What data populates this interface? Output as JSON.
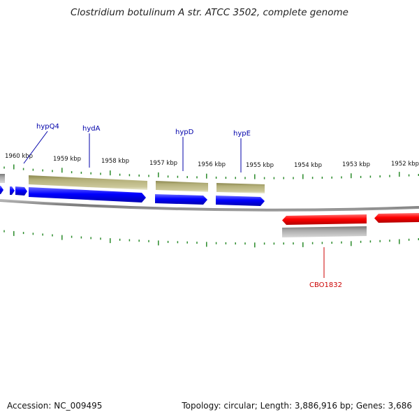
{
  "title": "Clostridium botulinum A str. ATCC 3502, complete genome",
  "footer": {
    "accession": "Accession: NC_009495",
    "summary": "Topology: circular; Length: 3,886,916 bp; Genes: 3,686"
  },
  "colors": {
    "backbone": "#8a8a8a",
    "tick": "#2a8a2a",
    "gene_forward": "#0000ff",
    "gene_reverse": "#ff0000",
    "cds_feature": "#b4b07a",
    "gray_feature": "#a8a8a8",
    "label_forward": "#0000aa",
    "label_reverse": "#cc0000"
  },
  "scale": {
    "unit": "kbp",
    "tick_labels": [
      "1960 kbp",
      "1959 kbp",
      "1958 kbp",
      "1957 kbp",
      "1956 kbp",
      "1955 kbp",
      "1954 kbp",
      "1953 kbp",
      "1952 kbp"
    ]
  },
  "gene_labels": {
    "forward": [
      "hypQ4",
      "hydA",
      "hypD",
      "hypE"
    ],
    "reverse": [
      "CBO1832"
    ]
  }
}
